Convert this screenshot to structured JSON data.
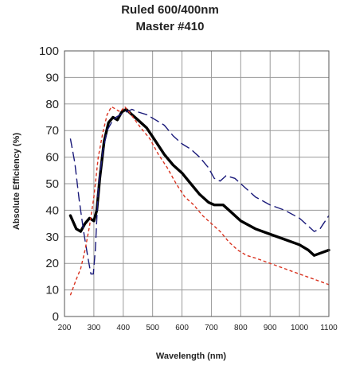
{
  "chart_data": {
    "type": "line",
    "title": "Ruled 600/400nm",
    "subtitle": "Master #410",
    "xlabel": "Wavelength (nm)",
    "ylabel": "Absolute Efficiency (%)",
    "xlim": [
      200,
      1100
    ],
    "ylim": [
      0,
      100
    ],
    "xticks": [
      200,
      300,
      400,
      500,
      600,
      700,
      800,
      900,
      1000,
      1100
    ],
    "yticks": [
      0,
      10,
      20,
      30,
      40,
      50,
      60,
      70,
      80,
      90,
      100
    ],
    "grid": true,
    "legend": "none",
    "series": [
      {
        "color": "#000000",
        "style": "solid-thick",
        "x": [
          220,
          240,
          255,
          270,
          285,
          300,
          310,
          320,
          335,
          350,
          365,
          380,
          395,
          410,
          430,
          450,
          480,
          510,
          540,
          570,
          600,
          630,
          660,
          690,
          710,
          740,
          770,
          800,
          850,
          900,
          950,
          1000,
          1030,
          1050,
          1075,
          1100
        ],
        "y": [
          38,
          33,
          32,
          35,
          37,
          36,
          40,
          52,
          66,
          73,
          75,
          74,
          77,
          78,
          76,
          74,
          71,
          66,
          61,
          57,
          54,
          50,
          46,
          43,
          42,
          42,
          39,
          36,
          33,
          31,
          29,
          27,
          25,
          23,
          24,
          25
        ]
      },
      {
        "color": "#1a1a7a",
        "style": "long-dash",
        "x": [
          220,
          235,
          250,
          265,
          280,
          290,
          298,
          305,
          315,
          330,
          345,
          360,
          375,
          390,
          410,
          430,
          450,
          480,
          510,
          540,
          570,
          600,
          630,
          660,
          690,
          710,
          730,
          750,
          780,
          800,
          850,
          900,
          950,
          1000,
          1030,
          1050,
          1070,
          1100
        ],
        "y": [
          67,
          58,
          44,
          32,
          22,
          16,
          16,
          25,
          48,
          62,
          70,
          73,
          75,
          76,
          77,
          78,
          77,
          76,
          74,
          72,
          68,
          65,
          63,
          60,
          56,
          52,
          51,
          53,
          52,
          50,
          45,
          42,
          40,
          37,
          34,
          32,
          33,
          38
        ]
      },
      {
        "color": "#d9321f",
        "style": "short-dash",
        "x": [
          220,
          240,
          255,
          270,
          285,
          300,
          315,
          330,
          345,
          360,
          375,
          390,
          405,
          420,
          440,
          460,
          490,
          520,
          550,
          580,
          610,
          640,
          670,
          700,
          730,
          760,
          790,
          820,
          850,
          900,
          950,
          1000,
          1050,
          1100
        ],
        "y": [
          8,
          14,
          18,
          25,
          34,
          45,
          60,
          69,
          76,
          79,
          78,
          77,
          79,
          77,
          74,
          71,
          67,
          61,
          56,
          50,
          45,
          42,
          38,
          35,
          32,
          28,
          25,
          23,
          22,
          20,
          18,
          16,
          14,
          12
        ]
      }
    ]
  }
}
